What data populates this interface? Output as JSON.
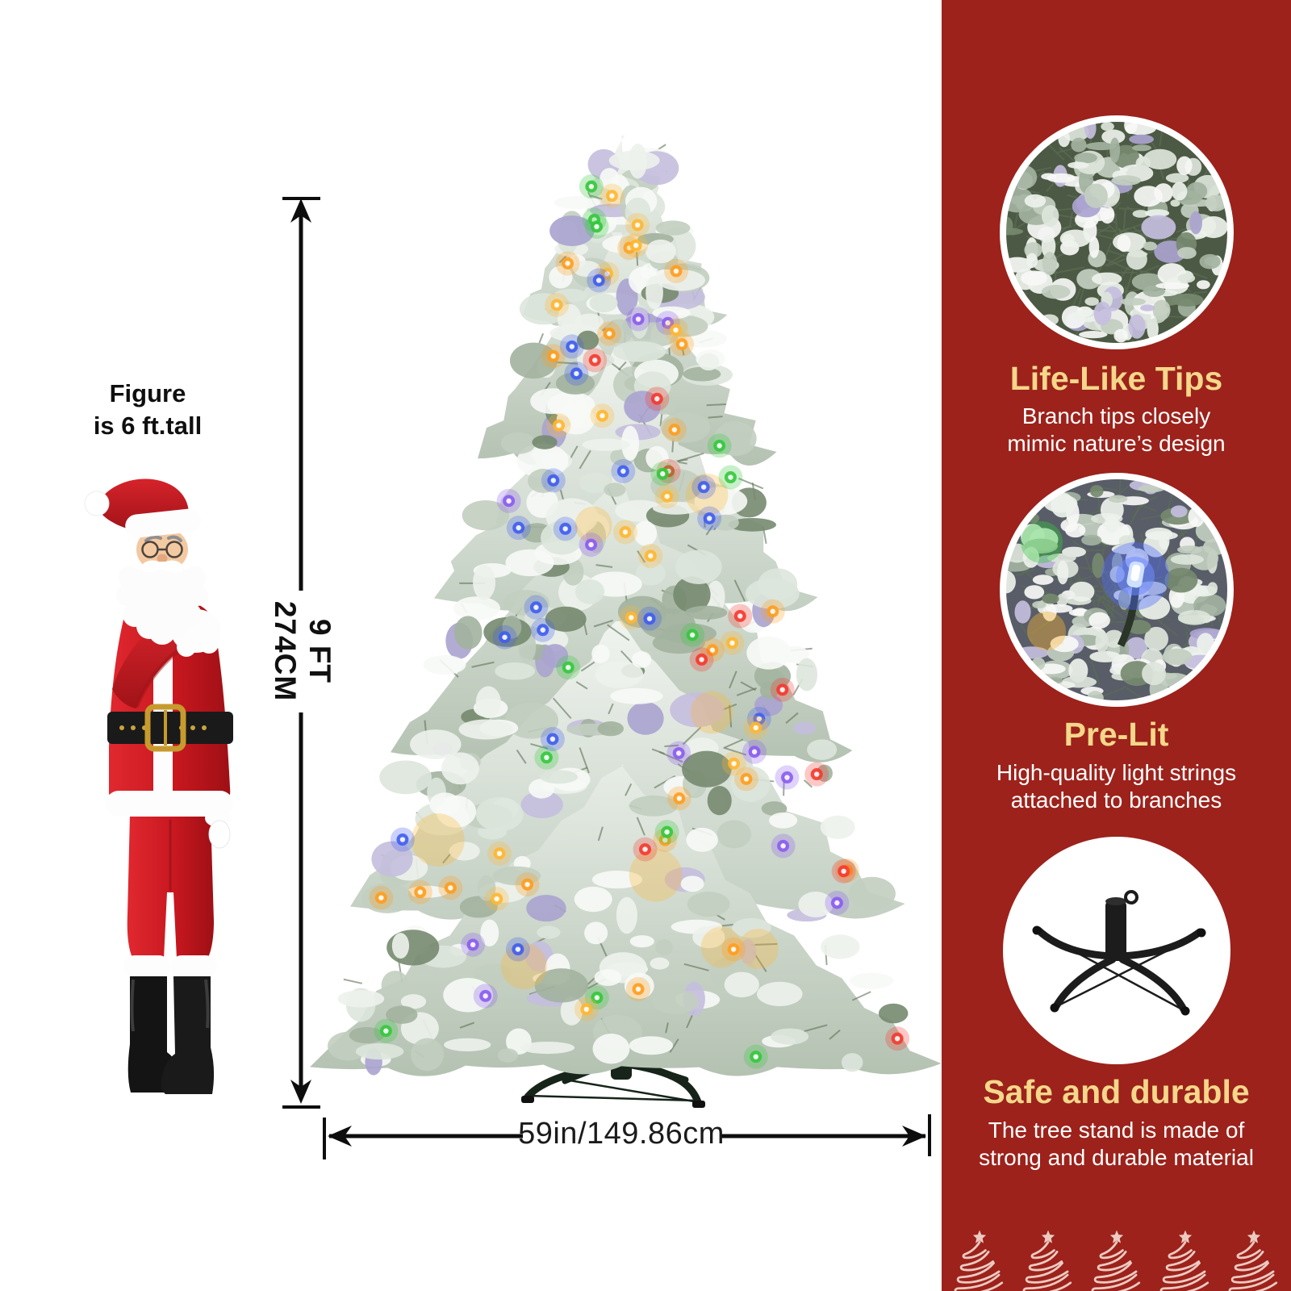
{
  "diagram": {
    "figure_note_line1": "Figure",
    "figure_note_line2": "is 6 ft.tall",
    "height_label_line1": "9 FT",
    "height_label_line2": "274CM",
    "width_label": "59in/149.86cm",
    "santa_image": "santa-claus-pointing-photo",
    "tree_image": "flocked-prelit-christmas-tree-photo",
    "light_colors": [
      "#ff9d1e",
      "#ffb732",
      "#f5382e",
      "#35c83e",
      "#3f5df0",
      "#8b5cf0"
    ]
  },
  "sidebar": {
    "background_color": "#9c221b",
    "title_color": "#f4d78a",
    "features": [
      {
        "title": "Life-Like Tips",
        "desc_line1": "Branch tips closely",
        "desc_line2": "mimic nature’s design",
        "image": "flocked-branch-tips-photo"
      },
      {
        "title": "Pre-Lit",
        "desc_line1": "High-quality light strings",
        "desc_line2": "attached to branches",
        "image": "lit-led-on-flocked-branch-photo"
      },
      {
        "title": "Safe and durable",
        "desc_line1": "The tree stand is made of",
        "desc_line2": "strong and durable material",
        "image": "folding-metal-tree-stand-photo"
      }
    ],
    "decoration_icon": "christmas-tree-line-icon"
  }
}
